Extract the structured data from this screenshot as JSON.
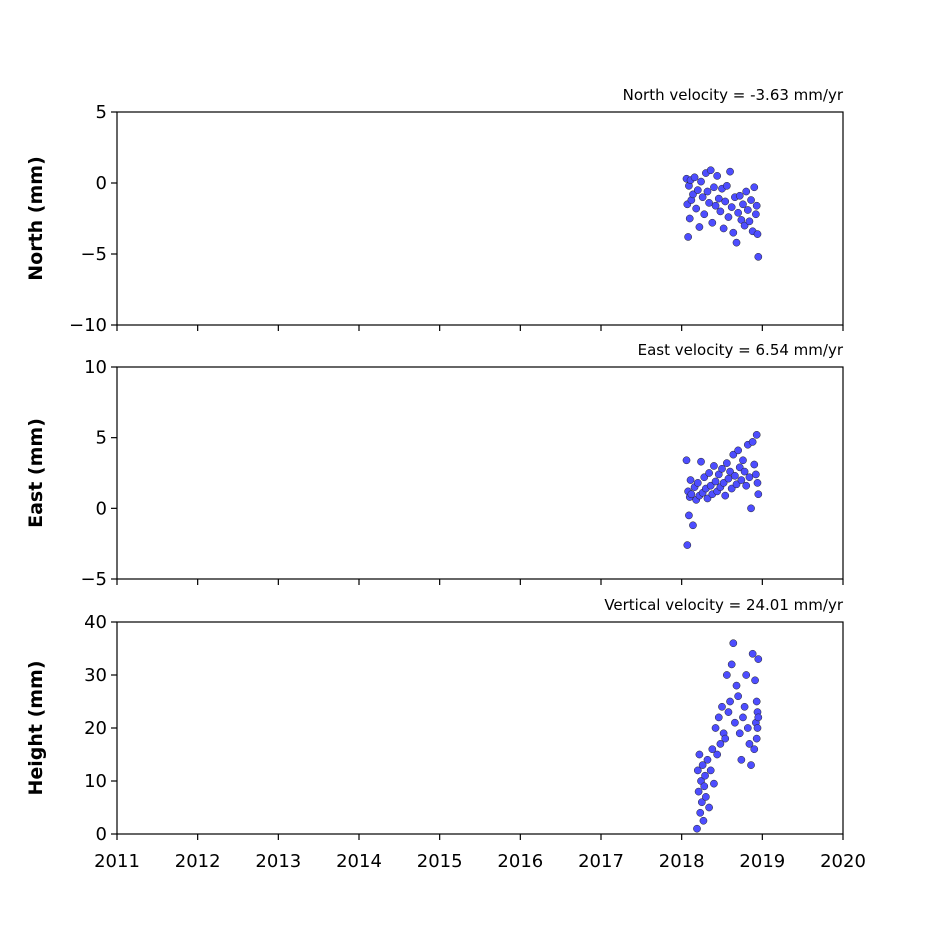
{
  "chart_data": [
    {
      "type": "scatter",
      "title": "North velocity = -3.63 mm/yr",
      "ylabel": "North (mm)",
      "color": "#4d4dff",
      "xlim": [
        2011,
        2020
      ],
      "xticks": [
        2011,
        2012,
        2013,
        2014,
        2015,
        2016,
        2017,
        2018,
        2019,
        2020
      ],
      "ylim": [
        -10,
        5
      ],
      "yticks": [
        {
          "value": -10,
          "label": "−10"
        },
        {
          "value": -5,
          "label": "−5"
        },
        0,
        5
      ],
      "x": [
        2018.06,
        2018.07,
        2018.08,
        2018.09,
        2018.1,
        2018.11,
        2018.12,
        2018.14,
        2018.16,
        2018.18,
        2018.2,
        2018.22,
        2018.24,
        2018.26,
        2018.28,
        2018.3,
        2018.32,
        2018.34,
        2018.36,
        2018.38,
        2018.4,
        2018.42,
        2018.44,
        2018.46,
        2018.48,
        2018.5,
        2018.52,
        2018.54,
        2018.56,
        2018.58,
        2018.6,
        2018.62,
        2018.64,
        2018.66,
        2018.68,
        2018.7,
        2018.72,
        2018.74,
        2018.76,
        2018.78,
        2018.8,
        2018.82,
        2018.84,
        2018.86,
        2018.88,
        2018.9,
        2018.92,
        2018.93,
        2018.94,
        2018.95
      ],
      "values": [
        0.3,
        -1.5,
        -3.8,
        -0.2,
        -2.5,
        0.2,
        -1.2,
        -0.8,
        0.4,
        -1.8,
        -0.5,
        -3.1,
        0.1,
        -1.0,
        -2.2,
        0.7,
        -0.6,
        -1.4,
        0.9,
        -2.8,
        -0.3,
        -1.6,
        0.5,
        -1.1,
        -2.0,
        -0.4,
        -3.2,
        -1.3,
        -0.2,
        -2.4,
        0.8,
        -1.7,
        -3.5,
        -1.0,
        -4.2,
        -2.1,
        -0.9,
        -2.6,
        -1.5,
        -3.0,
        -0.6,
        -1.9,
        -2.7,
        -1.2,
        -3.4,
        -0.3,
        -2.2,
        -1.6,
        -3.6,
        -5.2
      ]
    },
    {
      "type": "scatter",
      "title": "East velocity = 6.54 mm/yr",
      "ylabel": "East (mm)",
      "color": "#4d4dff",
      "xlim": [
        2011,
        2020
      ],
      "xticks": [
        2011,
        2012,
        2013,
        2014,
        2015,
        2016,
        2017,
        2018,
        2019,
        2020
      ],
      "ylim": [
        -5,
        10
      ],
      "yticks": [
        {
          "value": -5,
          "label": "−5"
        },
        0,
        5,
        10
      ],
      "x": [
        2018.06,
        2018.07,
        2018.08,
        2018.09,
        2018.1,
        2018.11,
        2018.12,
        2018.14,
        2018.16,
        2018.18,
        2018.2,
        2018.22,
        2018.24,
        2018.26,
        2018.28,
        2018.3,
        2018.32,
        2018.34,
        2018.36,
        2018.38,
        2018.4,
        2018.42,
        2018.44,
        2018.46,
        2018.48,
        2018.5,
        2018.52,
        2018.54,
        2018.56,
        2018.58,
        2018.6,
        2018.62,
        2018.64,
        2018.66,
        2018.68,
        2018.7,
        2018.72,
        2018.74,
        2018.76,
        2018.78,
        2018.8,
        2018.82,
        2018.84,
        2018.86,
        2018.88,
        2018.9,
        2018.92,
        2018.93,
        2018.94,
        2018.95
      ],
      "values": [
        3.4,
        -2.6,
        1.2,
        -0.5,
        0.8,
        2.0,
        1.0,
        -1.2,
        1.5,
        0.6,
        1.8,
        0.9,
        3.3,
        1.1,
        2.2,
        1.4,
        0.7,
        2.5,
        1.6,
        1.0,
        3.0,
        1.9,
        1.2,
        2.4,
        1.5,
        2.8,
        1.8,
        0.9,
        3.2,
        2.1,
        2.6,
        1.4,
        3.8,
        2.3,
        1.7,
        4.1,
        2.9,
        2.0,
        3.4,
        2.6,
        1.6,
        4.5,
        2.2,
        0.0,
        4.7,
        3.1,
        2.4,
        5.2,
        1.8,
        1.0
      ]
    },
    {
      "type": "scatter",
      "title": "Vertical velocity = 24.01 mm/yr",
      "ylabel": "Height (mm)",
      "color": "#4d4dff",
      "xlim": [
        2011,
        2020
      ],
      "xticks": [
        2011,
        2012,
        2013,
        2014,
        2015,
        2016,
        2017,
        2018,
        2019,
        2020
      ],
      "ylim": [
        0,
        40
      ],
      "yticks": [
        0,
        10,
        20,
        30,
        40
      ],
      "x": [
        2018.19,
        2018.2,
        2018.21,
        2018.22,
        2018.23,
        2018.24,
        2018.25,
        2018.26,
        2018.27,
        2018.28,
        2018.29,
        2018.3,
        2018.32,
        2018.34,
        2018.36,
        2018.38,
        2018.4,
        2018.42,
        2018.44,
        2018.46,
        2018.48,
        2018.5,
        2018.52,
        2018.54,
        2018.56,
        2018.58,
        2018.6,
        2018.62,
        2018.64,
        2018.66,
        2018.68,
        2018.7,
        2018.72,
        2018.74,
        2018.76,
        2018.78,
        2018.8,
        2018.82,
        2018.84,
        2018.86,
        2018.88,
        2018.9,
        2018.91,
        2018.92,
        2018.93,
        2018.94,
        2018.95,
        2018.95,
        2018.94,
        2018.93
      ],
      "values": [
        1.0,
        12,
        8,
        15,
        4,
        10,
        6,
        13,
        2.5,
        9,
        11,
        7,
        14,
        5,
        12,
        16,
        9.5,
        20,
        15,
        22,
        17,
        24,
        19,
        18,
        30,
        23,
        25,
        32,
        36,
        21,
        28,
        26,
        19,
        14,
        22,
        24,
        30,
        20,
        17,
        13,
        34,
        16,
        29,
        21,
        25,
        23,
        22,
        33,
        20,
        18
      ]
    }
  ]
}
